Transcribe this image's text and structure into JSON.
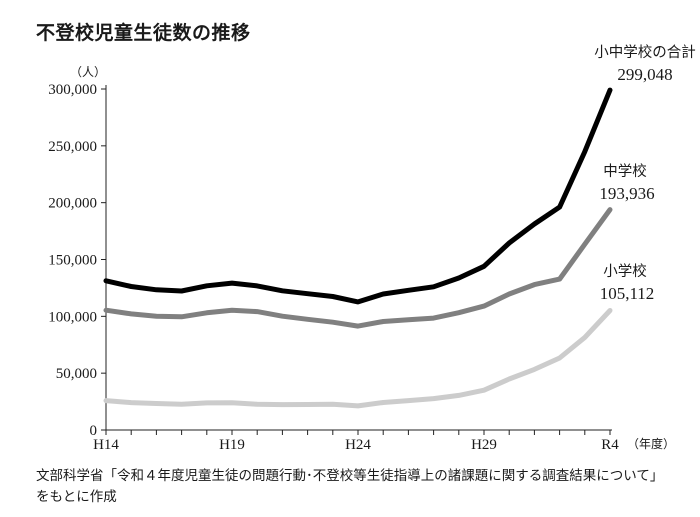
{
  "title": "不登校児童生徒数の推移",
  "source": "文部科学省「令和４年度児童生徒の問題行動･不登校等生徒指導上の諸課題に関する調査結果について」をもとに作成",
  "chart_data": {
    "type": "line",
    "title": "不登校児童生徒数の推移",
    "y_unit": "（人）",
    "x_unit": "（年度）",
    "x": [
      "H14",
      "H15",
      "H16",
      "H17",
      "H18",
      "H19",
      "H20",
      "H21",
      "H22",
      "H23",
      "H24",
      "H25",
      "H26",
      "H27",
      "H28",
      "H29",
      "H30",
      "R1",
      "R2",
      "R3",
      "R4"
    ],
    "x_tick_labels": [
      "H14",
      "H19",
      "H24",
      "H29",
      "R4"
    ],
    "x_tick_indices": [
      0,
      5,
      10,
      15,
      20
    ],
    "y_ticks": [
      0,
      50000,
      100000,
      150000,
      200000,
      250000,
      300000
    ],
    "y_tick_labels": [
      "0",
      "50,000",
      "100,000",
      "150,000",
      "200,000",
      "250,000",
      "300,000"
    ],
    "ylim": [
      0,
      300000
    ],
    "grid": false,
    "series": [
      {
        "name": "小中学校の合計",
        "end_label": "299,048",
        "color": "#000000",
        "values": [
          131252,
          126226,
          123358,
          122287,
          126894,
          129255,
          126805,
          122432,
          119891,
          117458,
          112689,
          119617,
          122897,
          125991,
          133683,
          144031,
          164528,
          181272,
          196127,
          244940,
          299048
        ]
      },
      {
        "name": "中学校",
        "end_label": "193,936",
        "color": "#808080",
        "values": [
          105383,
          102149,
          100040,
          99578,
          103069,
          105328,
          104153,
          100105,
          97428,
          94836,
          91446,
          95442,
          97033,
          98408,
          103235,
          108999,
          119687,
          127922,
          132777,
          163442,
          193936
        ]
      },
      {
        "name": "小学校",
        "end_label": "105,112",
        "color": "#cccccc",
        "values": [
          25869,
          24077,
          23318,
          22709,
          23825,
          23927,
          22652,
          22327,
          22463,
          22622,
          21243,
          24175,
          25864,
          27583,
          30448,
          35032,
          44841,
          53350,
          63350,
          81498,
          105112
        ]
      }
    ]
  }
}
